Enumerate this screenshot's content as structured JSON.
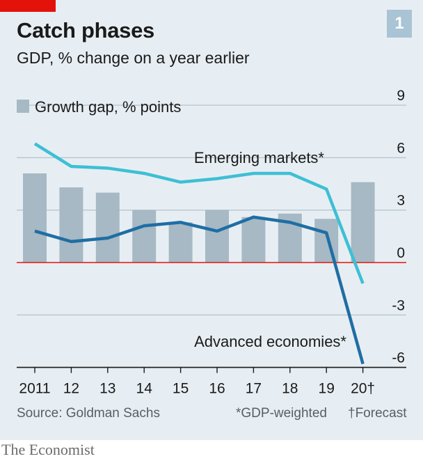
{
  "header": {
    "title": "Catch phases",
    "subtitle": "GDP, % change on a year earlier",
    "chart_number": "1"
  },
  "footer": {
    "source": "Source: Goldman Sachs",
    "note_gdp": "*GDP-weighted",
    "note_forecast": "†Forecast"
  },
  "brand": "The Economist",
  "colors": {
    "card_bg": "#e7eef3",
    "bars": "#a6b9c4",
    "emerging": "#3ebfd4",
    "advanced": "#1f6ea4",
    "zero_line": "#e3120b",
    "grid": "#b8c6cf",
    "axis": "#1a1a1a"
  },
  "chart_data": {
    "type": "bar+line",
    "title": "Catch phases",
    "subtitle": "GDP, % change on a year earlier",
    "categories": [
      "2011",
      "12",
      "13",
      "14",
      "15",
      "16",
      "17",
      "18",
      "19",
      "20†"
    ],
    "y_ticks": [
      "9",
      "6",
      "3",
      "0",
      "-3",
      "-6"
    ],
    "ylim": [
      -6,
      9
    ],
    "grid": true,
    "legend": "top-left",
    "bars": {
      "name": "Growth gap, % points",
      "values": [
        5.1,
        4.3,
        4.0,
        3.0,
        2.3,
        3.0,
        2.6,
        2.8,
        2.5,
        4.6
      ]
    },
    "series": [
      {
        "name": "Emerging markets*",
        "values": [
          6.8,
          5.5,
          5.4,
          5.1,
          4.6,
          4.8,
          5.1,
          5.1,
          4.2,
          -1.2
        ]
      },
      {
        "name": "Advanced economies*",
        "values": [
          1.8,
          1.2,
          1.4,
          2.1,
          2.3,
          1.8,
          2.6,
          2.3,
          1.7,
          -5.8
        ]
      }
    ]
  }
}
